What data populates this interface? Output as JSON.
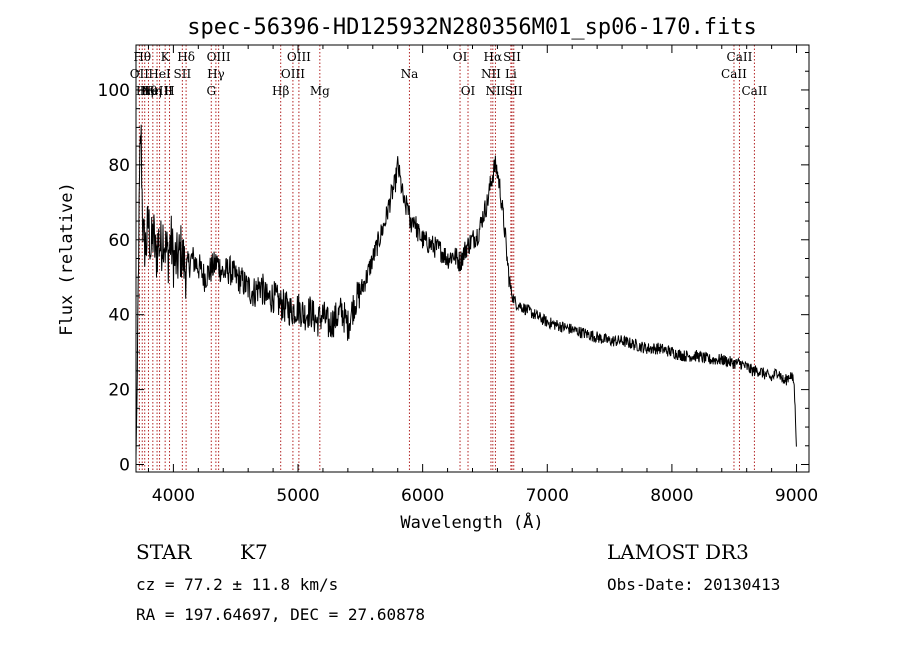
{
  "chart_data": {
    "type": "line",
    "title": "spec-56396-HD125932N280356M01_sp06-170.fits",
    "xlabel": "Wavelength (Å)",
    "ylabel": "Flux (relative)",
    "xlim": [
      3700,
      9100
    ],
    "ylim": [
      -2,
      112
    ],
    "x_ticks": [
      4000,
      5000,
      6000,
      7000,
      8000,
      9000
    ],
    "y_ticks": [
      0,
      20,
      40,
      60,
      80,
      100
    ],
    "grid": false,
    "legend": "none",
    "line_color": "#000000",
    "marker_color": "#b22222",
    "series": [
      {
        "x": [
          3700,
          3710,
          3720,
          3730,
          3740,
          3750,
          3760,
          3780,
          3800,
          3820,
          3840,
          3860,
          3880,
          3900,
          3920,
          3940,
          3960,
          3980,
          4000,
          4030,
          4060,
          4100,
          4150,
          4200,
          4250,
          4300,
          4350,
          4400,
          4450,
          4500,
          4550,
          4600,
          4650,
          4700,
          4750,
          4800,
          4850,
          4900,
          4950,
          5000,
          5050,
          5100,
          5150,
          5200,
          5250,
          5300,
          5350,
          5400,
          5450,
          5500,
          5550,
          5600,
          5650,
          5700,
          5750,
          5780,
          5800,
          5830,
          5860,
          5880,
          5900,
          5930,
          5960,
          6000,
          6050,
          6100,
          6150,
          6200,
          6250,
          6300,
          6350,
          6400,
          6450,
          6480,
          6500,
          6520,
          6540,
          6560,
          6580,
          6600,
          6620,
          6640,
          6660,
          6680,
          6700,
          6720,
          6750,
          6800,
          6850,
          6900,
          6950,
          7000,
          7100,
          7200,
          7300,
          7400,
          7500,
          7600,
          7700,
          7800,
          7900,
          8000,
          8100,
          8200,
          8300,
          8400,
          8500,
          8550,
          8600,
          8650,
          8700,
          8750,
          8800,
          8850,
          8900,
          8950,
          8980,
          9000
        ],
        "y": [
          2,
          22,
          55,
          78,
          90,
          70,
          60,
          58,
          65,
          57,
          62,
          55,
          60,
          58,
          62,
          57,
          56,
          60,
          55,
          54,
          57,
          52,
          55,
          53,
          50,
          52,
          54,
          51,
          52,
          50,
          49,
          47,
          46,
          48,
          44,
          45,
          43,
          42,
          41,
          42,
          40,
          41,
          38,
          40,
          37,
          39,
          41,
          37,
          43,
          46,
          50,
          55,
          60,
          65,
          72,
          75,
          80,
          74,
          68,
          70,
          64,
          66,
          62,
          60,
          59,
          58,
          57,
          55,
          56,
          54,
          58,
          60,
          62,
          66,
          68,
          70,
          74,
          77,
          80,
          78,
          74,
          68,
          62,
          54,
          48,
          45,
          43,
          42,
          41,
          40,
          39,
          38,
          37,
          36,
          35,
          34,
          33,
          33,
          32,
          31,
          31,
          30,
          29,
          29,
          28,
          28,
          27,
          27,
          26,
          25,
          25,
          24,
          23,
          25,
          22,
          24,
          22,
          5
        ]
      }
    ],
    "spectral_lines": [
      {
        "wl": 3727,
        "label": "OII",
        "row": 1
      },
      {
        "wl": 3750,
        "label": "Hθ",
        "row": 0
      },
      {
        "wl": 3770,
        "label": "Hη",
        "row": 2
      },
      {
        "wl": 3800,
        "label": "Hθ",
        "row": 2
      },
      {
        "wl": 3835,
        "label": "Hη",
        "row": 2
      },
      {
        "wl": 3869,
        "label": "NeIII",
        "row": 2
      },
      {
        "wl": 3889,
        "label": "HeI",
        "row": 1
      },
      {
        "wl": 3934,
        "label": "K",
        "row": 0
      },
      {
        "wl": 3969,
        "label": "H",
        "row": 2
      },
      {
        "wl": 4072,
        "label": "SII",
        "row": 1
      },
      {
        "wl": 4102,
        "label": "Hδ",
        "row": 0
      },
      {
        "wl": 4304,
        "label": "G",
        "row": 2
      },
      {
        "wl": 4341,
        "label": "Hγ",
        "row": 1
      },
      {
        "wl": 4363,
        "label": "OIII",
        "row": 0
      },
      {
        "wl": 4861,
        "label": "Hβ",
        "row": 2
      },
      {
        "wl": 4959,
        "label": "OIII",
        "row": 1
      },
      {
        "wl": 5007,
        "label": "OIII",
        "row": 0
      },
      {
        "wl": 5175,
        "label": "Mg",
        "row": 2
      },
      {
        "wl": 5894,
        "label": "Na",
        "row": 1
      },
      {
        "wl": 6300,
        "label": "OI",
        "row": 0
      },
      {
        "wl": 6364,
        "label": "OI",
        "row": 2
      },
      {
        "wl": 6548,
        "label": "NII",
        "row": 1
      },
      {
        "wl": 6563,
        "label": "Hα",
        "row": 0
      },
      {
        "wl": 6584,
        "label": "NII",
        "row": 2
      },
      {
        "wl": 6708,
        "label": "Li",
        "row": 1
      },
      {
        "wl": 6717,
        "label": "SII",
        "row": 0
      },
      {
        "wl": 6731,
        "label": "SII",
        "row": 2
      },
      {
        "wl": 8498,
        "label": "CaII",
        "row": 1
      },
      {
        "wl": 8542,
        "label": "CaII",
        "row": 0
      },
      {
        "wl": 8662,
        "label": "CaII",
        "row": 2
      }
    ]
  },
  "info": {
    "object_class": "STAR",
    "subclass": "K7",
    "survey": "LAMOST DR3",
    "cz": "cz = 77.2 ± 11.8 km/s",
    "obs_date": "Obs-Date: 20130413",
    "radec": "RA = 197.64697, DEC =  27.60878"
  }
}
